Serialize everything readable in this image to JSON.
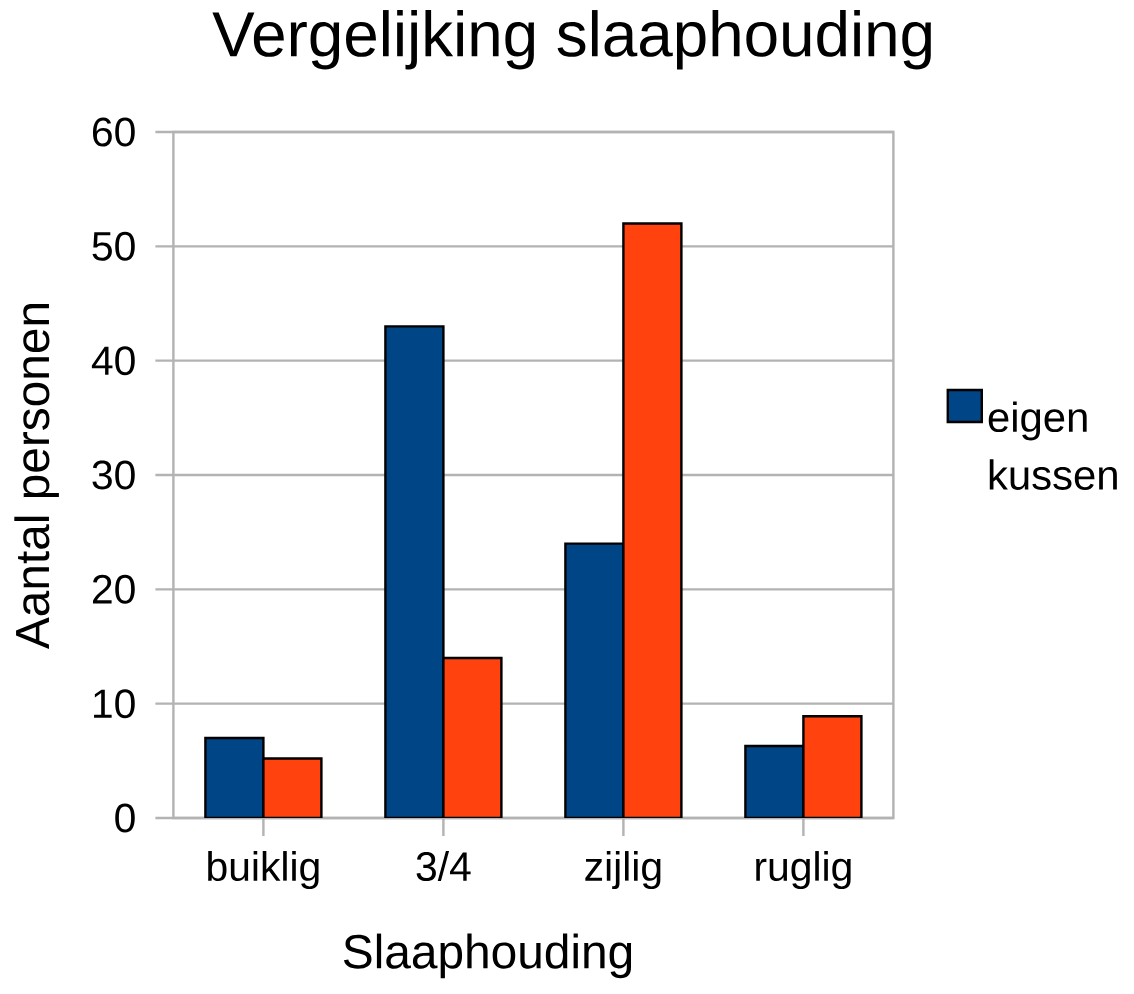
{
  "chart_data": {
    "type": "bar",
    "title": "Vergelijking slaaphouding",
    "xlabel": "Slaaphouding",
    "ylabel": "Aantal personen",
    "categories": [
      "buiklig",
      "3/4",
      "zijlig",
      "ruglig"
    ],
    "series": [
      {
        "name": "eigen kussen",
        "color": "#004586",
        "values": [
          7,
          43,
          24,
          6.3
        ]
      },
      {
        "color": "#ff420e",
        "values": [
          5.2,
          14,
          52,
          8.9
        ]
      }
    ],
    "ylim": [
      0,
      60
    ],
    "yticks": [
      0,
      10,
      20,
      30,
      40,
      50,
      60
    ],
    "grid": "y",
    "legend": "right"
  }
}
